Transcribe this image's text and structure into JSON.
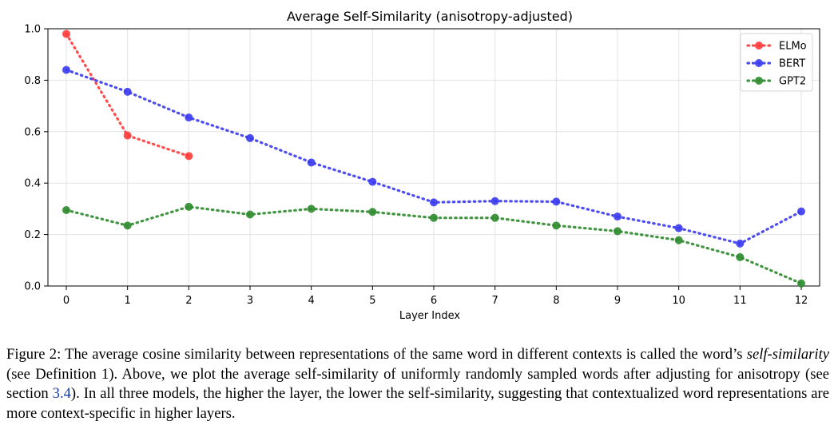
{
  "chart_data": {
    "type": "line",
    "title": "Average Self-Similarity (anisotropy-adjusted)",
    "xlabel": "Layer Index",
    "ylabel": "",
    "xlim": [
      -0.3,
      12.3
    ],
    "ylim": [
      0.0,
      1.0
    ],
    "x_ticks": [
      0,
      1,
      2,
      3,
      4,
      5,
      6,
      7,
      8,
      9,
      10,
      11,
      12
    ],
    "y_ticks": [
      0.0,
      0.2,
      0.4,
      0.6,
      0.8,
      1.0
    ],
    "y_tick_labels": [
      "0.0",
      "0.2",
      "0.4",
      "0.6",
      "0.8",
      "1.0"
    ],
    "grid": true,
    "legend_position": "top-right",
    "series": [
      {
        "name": "ELMo",
        "color": "#ff3b3b",
        "x": [
          0,
          1,
          2
        ],
        "y": [
          0.98,
          0.585,
          0.505
        ]
      },
      {
        "name": "BERT",
        "color": "#3a3aef",
        "x": [
          0,
          1,
          2,
          3,
          4,
          5,
          6,
          7,
          8,
          9,
          10,
          11,
          12
        ],
        "y": [
          0.84,
          0.755,
          0.655,
          0.575,
          0.48,
          0.405,
          0.325,
          0.33,
          0.328,
          0.27,
          0.225,
          0.165,
          0.29
        ]
      },
      {
        "name": "GPT2",
        "color": "#2e8b2e",
        "x": [
          0,
          1,
          2,
          3,
          4,
          5,
          6,
          7,
          8,
          9,
          10,
          11,
          12
        ],
        "y": [
          0.295,
          0.235,
          0.308,
          0.278,
          0.3,
          0.288,
          0.265,
          0.265,
          0.235,
          0.213,
          0.178,
          0.112,
          0.01
        ]
      }
    ]
  },
  "caption": {
    "label": "Figure 2:",
    "part1": "The average cosine similarity between representations of the same word in different contexts is called the word’s ",
    "term": "self-similarity",
    "part2": " (see Definition 1). Above, we plot the average self-similarity of uniformly randomly sampled words after adjusting for anisotropy (see section ",
    "section_ref": "3.4",
    "part3": "). In all three models, the higher the layer, the lower the self-similarity, suggesting that contextualized word representations are more context-specific in higher layers."
  }
}
